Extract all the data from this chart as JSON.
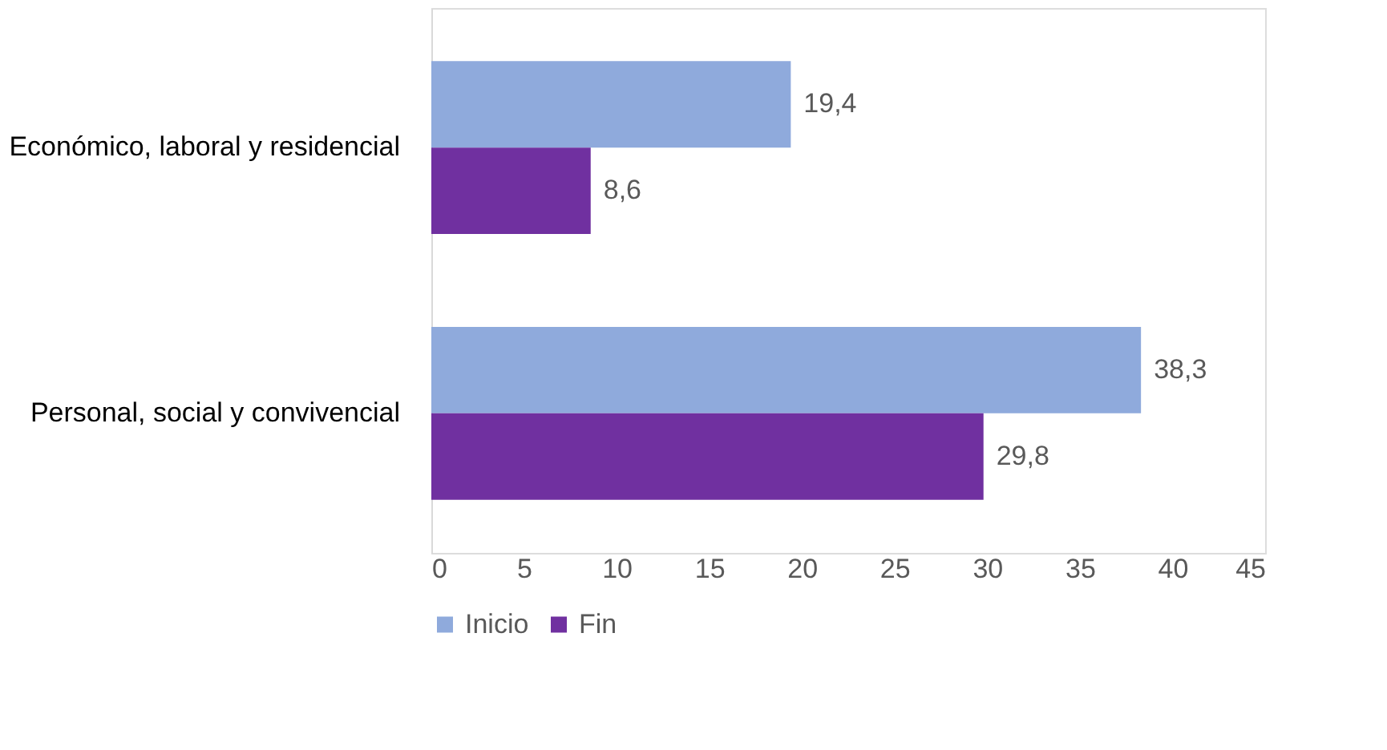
{
  "chart_data": {
    "type": "bar",
    "orientation": "horizontal",
    "categories": [
      "Económico, laboral y residencial",
      "Personal, social y convivencial"
    ],
    "series": [
      {
        "name": "Inicio",
        "color": "#8faadc",
        "values": [
          19.4,
          38.3
        ],
        "value_labels": [
          "19,4",
          "38,3"
        ]
      },
      {
        "name": "Fin",
        "color": "#7030a0",
        "values": [
          8.6,
          29.8
        ],
        "value_labels": [
          "8,6",
          "29,8"
        ]
      }
    ],
    "xlim": [
      0,
      45
    ],
    "xticks": [
      0,
      5,
      10,
      15,
      20,
      25,
      30,
      35,
      40,
      45
    ],
    "grid": false,
    "legend": "bottom"
  }
}
